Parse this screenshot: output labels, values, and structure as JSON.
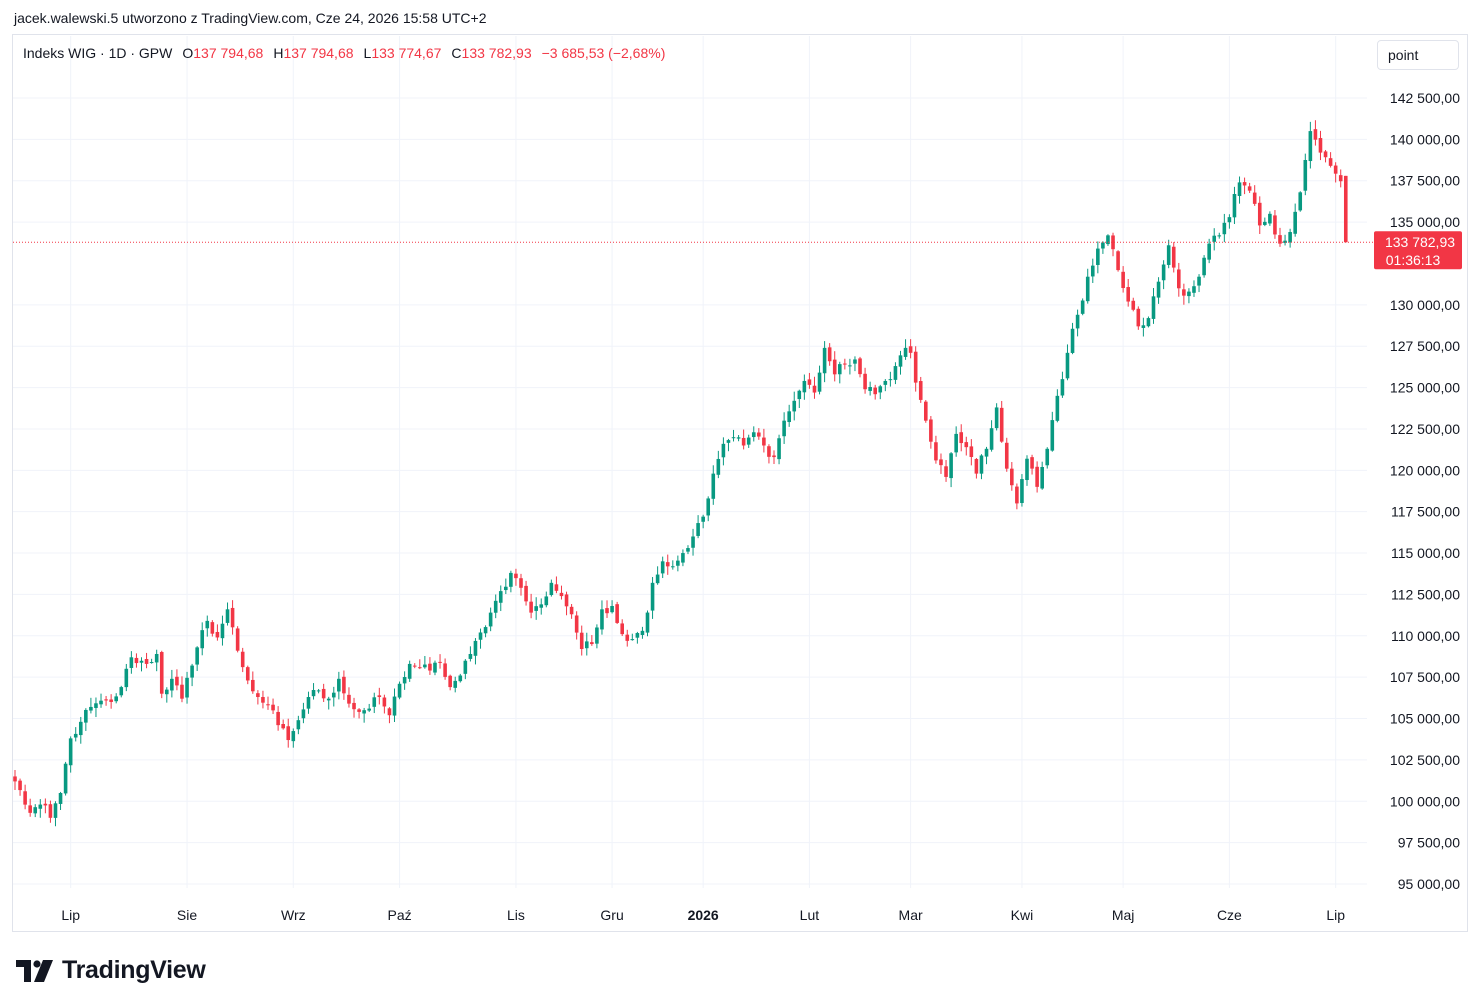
{
  "header": {
    "attribution": "jacek.walewski.5 utworzono z TradingView.com, Cze 24, 2026 15:58 UTC+2"
  },
  "legend": {
    "symbol": "Indeks WIG · 1D · GPW",
    "open_label": "O",
    "open_value": "137 794,68",
    "high_label": "H",
    "high_value": "137 794,68",
    "low_label": "L",
    "low_value": "133 774,67",
    "close_label": "C",
    "close_value": "133 782,93",
    "change": "−3 685,53 (−2,68%)"
  },
  "toolbar": {
    "unit_label": "point"
  },
  "price_tag": {
    "price": "133 782,93",
    "countdown": "01:36:13"
  },
  "brand": {
    "name": "TradingView"
  },
  "colors": {
    "up": "#089981",
    "down": "#f23645",
    "grid": "#f0f3fa",
    "axis_text": "#131722"
  },
  "chart_data": {
    "type": "candlestick",
    "y_axis": {
      "min": 95000,
      "max": 142500,
      "ticks": [
        {
          "value": 142500,
          "label": "142 500,00"
        },
        {
          "value": 140000,
          "label": "140 000,00"
        },
        {
          "value": 137500,
          "label": "137 500,00"
        },
        {
          "value": 135000,
          "label": "135 000,00"
        },
        {
          "value": 130000,
          "label": "130 000,00"
        },
        {
          "value": 127500,
          "label": "127 500,00"
        },
        {
          "value": 125000,
          "label": "125 000,00"
        },
        {
          "value": 122500,
          "label": "122 500,00"
        },
        {
          "value": 120000,
          "label": "120 000,00"
        },
        {
          "value": 117500,
          "label": "117 500,00"
        },
        {
          "value": 115000,
          "label": "115 000,00"
        },
        {
          "value": 112500,
          "label": "112 500,00"
        },
        {
          "value": 110000,
          "label": "110 000,00"
        },
        {
          "value": 107500,
          "label": "107 500,00"
        },
        {
          "value": 105000,
          "label": "105 000,00"
        },
        {
          "value": 102500,
          "label": "102 500,00"
        },
        {
          "value": 100000,
          "label": "100 000,00"
        },
        {
          "value": 97500,
          "label": "97 500,00"
        },
        {
          "value": 95000,
          "label": "95 000,00"
        }
      ]
    },
    "x_axis": {
      "labels": [
        {
          "label": "Lip",
          "index": 11,
          "bold": false
        },
        {
          "label": "Sie",
          "index": 34,
          "bold": false
        },
        {
          "label": "Wrz",
          "index": 55,
          "bold": false
        },
        {
          "label": "Paź",
          "index": 76,
          "bold": false
        },
        {
          "label": "Lis",
          "index": 99,
          "bold": false
        },
        {
          "label": "Gru",
          "index": 118,
          "bold": false
        },
        {
          "label": "2026",
          "index": 136,
          "bold": true
        },
        {
          "label": "Lut",
          "index": 157,
          "bold": false
        },
        {
          "label": "Mar",
          "index": 177,
          "bold": false
        },
        {
          "label": "Kwi",
          "index": 199,
          "bold": false
        },
        {
          "label": "Maj",
          "index": 219,
          "bold": false
        },
        {
          "label": "Cze",
          "index": 240,
          "bold": false
        },
        {
          "label": "Lip",
          "index": 261,
          "bold": false
        }
      ]
    },
    "last_price": 133782.93,
    "anchors": [
      [
        0,
        101200
      ],
      [
        3,
        99300
      ],
      [
        5,
        99800
      ],
      [
        7,
        99000
      ],
      [
        9,
        100500
      ],
      [
        11,
        103800
      ],
      [
        13,
        104800
      ],
      [
        15,
        105700
      ],
      [
        19,
        106000
      ],
      [
        21,
        106900
      ],
      [
        23,
        108700
      ],
      [
        26,
        108300
      ],
      [
        28,
        108900
      ],
      [
        29,
        106500
      ],
      [
        31,
        107400
      ],
      [
        33,
        106200
      ],
      [
        35,
        108200
      ],
      [
        36,
        109300
      ],
      [
        38,
        110900
      ],
      [
        40,
        109900
      ],
      [
        42,
        111600
      ],
      [
        44,
        109100
      ],
      [
        46,
        107300
      ],
      [
        48,
        106300
      ],
      [
        50,
        105800
      ],
      [
        52,
        104600
      ],
      [
        54,
        103700
      ],
      [
        56,
        104900
      ],
      [
        58,
        106300
      ],
      [
        60,
        106700
      ],
      [
        62,
        106200
      ],
      [
        64,
        107400
      ],
      [
        66,
        105900
      ],
      [
        68,
        105400
      ],
      [
        70,
        105600
      ],
      [
        72,
        106300
      ],
      [
        74,
        105200
      ],
      [
        76,
        107100
      ],
      [
        78,
        108300
      ],
      [
        80,
        108100
      ],
      [
        82,
        107900
      ],
      [
        84,
        108400
      ],
      [
        86,
        106900
      ],
      [
        88,
        107600
      ],
      [
        90,
        108900
      ],
      [
        92,
        110200
      ],
      [
        94,
        111400
      ],
      [
        96,
        112700
      ],
      [
        98,
        113800
      ],
      [
        100,
        112900
      ],
      [
        102,
        111400
      ],
      [
        104,
        111900
      ],
      [
        106,
        113200
      ],
      [
        108,
        112400
      ],
      [
        110,
        111300
      ],
      [
        112,
        109200
      ],
      [
        114,
        109500
      ],
      [
        116,
        111600
      ],
      [
        118,
        111800
      ],
      [
        120,
        110100
      ],
      [
        122,
        109800
      ],
      [
        124,
        110300
      ],
      [
        126,
        113200
      ],
      [
        128,
        114500
      ],
      [
        130,
        114200
      ],
      [
        132,
        115000
      ],
      [
        134,
        116000
      ],
      [
        136,
        117200
      ],
      [
        137,
        118300
      ],
      [
        138,
        119800
      ],
      [
        140,
        121600
      ],
      [
        142,
        122000
      ],
      [
        144,
        121500
      ],
      [
        146,
        122300
      ],
      [
        148,
        121500
      ],
      [
        150,
        120800
      ],
      [
        152,
        123000
      ],
      [
        154,
        124200
      ],
      [
        156,
        125400
      ],
      [
        158,
        124700
      ],
      [
        160,
        127400
      ],
      [
        162,
        125800
      ],
      [
        164,
        126400
      ],
      [
        166,
        126700
      ],
      [
        168,
        124900
      ],
      [
        170,
        124600
      ],
      [
        172,
        125400
      ],
      [
        174,
        126300
      ],
      [
        176,
        127400
      ],
      [
        177,
        127100
      ],
      [
        178,
        125300
      ],
      [
        180,
        123000
      ],
      [
        182,
        120600
      ],
      [
        184,
        119600
      ],
      [
        186,
        122200
      ],
      [
        188,
        121400
      ],
      [
        190,
        119800
      ],
      [
        192,
        121300
      ],
      [
        194,
        123800
      ],
      [
        196,
        120100
      ],
      [
        198,
        118000
      ],
      [
        200,
        120700
      ],
      [
        202,
        119000
      ],
      [
        204,
        121300
      ],
      [
        206,
        124500
      ],
      [
        208,
        127100
      ],
      [
        210,
        129400
      ],
      [
        212,
        131700
      ],
      [
        214,
        133400
      ],
      [
        216,
        134200
      ],
      [
        218,
        132100
      ],
      [
        220,
        130200
      ],
      [
        222,
        128700
      ],
      [
        224,
        129200
      ],
      [
        226,
        131400
      ],
      [
        228,
        133600
      ],
      [
        230,
        131000
      ],
      [
        232,
        130800
      ],
      [
        234,
        131700
      ],
      [
        236,
        133700
      ],
      [
        238,
        134200
      ],
      [
        240,
        135300
      ],
      [
        242,
        137400
      ],
      [
        244,
        136900
      ],
      [
        246,
        134800
      ],
      [
        248,
        135500
      ],
      [
        250,
        133700
      ],
      [
        252,
        134400
      ],
      [
        254,
        136800
      ],
      [
        256,
        140500
      ],
      [
        258,
        139200
      ],
      [
        260,
        138400
      ],
      [
        262,
        137470
      ],
      [
        263,
        133782.93
      ]
    ]
  }
}
